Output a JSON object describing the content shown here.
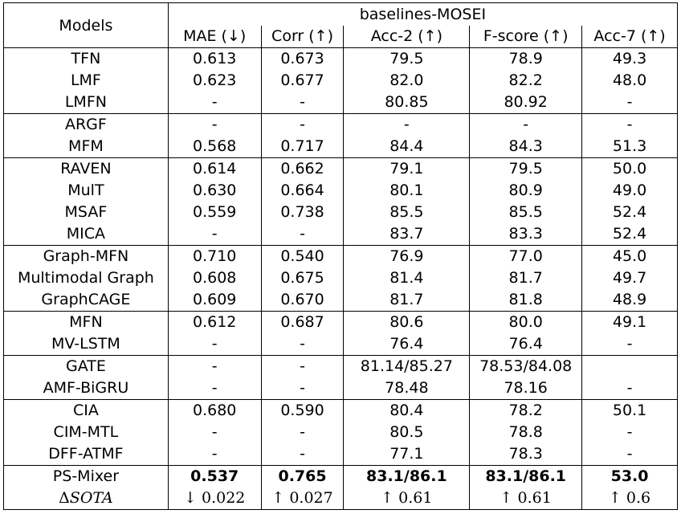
{
  "header": {
    "models_label": "Models",
    "group_label": "baselines-MOSEI",
    "columns": [
      "MAE (↓)",
      "Corr (↑)",
      "Acc-2 (↑)",
      "F-score (↑)",
      "Acc-7 (↑)"
    ]
  },
  "groups": [
    {
      "rows": [
        {
          "model": "TFN",
          "mae": "0.613",
          "corr": "0.673",
          "acc2": "79.5",
          "fscore": "78.9",
          "acc7": "49.3"
        },
        {
          "model": "LMF",
          "mae": "0.623",
          "corr": "0.677",
          "acc2": "82.0",
          "fscore": "82.2",
          "acc7": "48.0"
        },
        {
          "model": "LMFN",
          "mae": "-",
          "corr": "-",
          "acc2": "80.85",
          "fscore": "80.92",
          "acc7": "-"
        }
      ]
    },
    {
      "rows": [
        {
          "model": "ARGF",
          "mae": "-",
          "corr": "-",
          "acc2": "-",
          "fscore": "-",
          "acc7": "-"
        },
        {
          "model": "MFM",
          "mae": "0.568",
          "corr": "0.717",
          "acc2": "84.4",
          "fscore": "84.3",
          "acc7": "51.3"
        }
      ]
    },
    {
      "rows": [
        {
          "model": "RAVEN",
          "mae": "0.614",
          "corr": "0.662",
          "acc2": "79.1",
          "fscore": "79.5",
          "acc7": "50.0"
        },
        {
          "model": "MulT",
          "mae": "0.630",
          "corr": "0.664",
          "acc2": "80.1",
          "fscore": "80.9",
          "acc7": "49.0"
        },
        {
          "model": "MSAF",
          "mae": "0.559",
          "corr": "0.738",
          "acc2": "85.5",
          "fscore": "85.5",
          "acc7": "52.4"
        },
        {
          "model": "MICA",
          "mae": "-",
          "corr": "-",
          "acc2": "83.7",
          "fscore": "83.3",
          "acc7": "52.4"
        }
      ]
    },
    {
      "rows": [
        {
          "model": "Graph-MFN",
          "mae": "0.710",
          "corr": "0.540",
          "acc2": "76.9",
          "fscore": "77.0",
          "acc7": "45.0"
        },
        {
          "model": "Multimodal Graph",
          "mae": "0.608",
          "corr": "0.675",
          "acc2": "81.4",
          "fscore": "81.7",
          "acc7": "49.7"
        },
        {
          "model": "GraphCAGE",
          "mae": "0.609",
          "corr": "0.670",
          "acc2": "81.7",
          "fscore": "81.8",
          "acc7": "48.9"
        }
      ]
    },
    {
      "rows": [
        {
          "model": "MFN",
          "mae": "0.612",
          "corr": "0.687",
          "acc2": "80.6",
          "fscore": "80.0",
          "acc7": "49.1"
        },
        {
          "model": "MV-LSTM",
          "mae": "-",
          "corr": "-",
          "acc2": "76.4",
          "fscore": "76.4",
          "acc7": "-"
        }
      ]
    },
    {
      "rows": [
        {
          "model": "GATE",
          "mae": "-",
          "corr": "-",
          "acc2": "81.14/85.27",
          "fscore": "78.53/84.08",
          "acc7": ""
        },
        {
          "model": "AMF-BiGRU",
          "mae": "-",
          "corr": "-",
          "acc2": "78.48",
          "fscore": "78.16",
          "acc7": "-"
        }
      ]
    },
    {
      "rows": [
        {
          "model": "CIA",
          "mae": "0.680",
          "corr": "0.590",
          "acc2": "80.4",
          "fscore": "78.2",
          "acc7": "50.1"
        },
        {
          "model": "CIM-MTL",
          "mae": "-",
          "corr": "-",
          "acc2": "80.5",
          "fscore": "78.8",
          "acc7": "-"
        },
        {
          "model": "DFF-ATMF",
          "mae": "-",
          "corr": "-",
          "acc2": "77.1",
          "fscore": "78.3",
          "acc7": "-"
        }
      ]
    }
  ],
  "ours": {
    "model": "PS-Mixer",
    "mae": "0.537",
    "corr": "0.765",
    "acc2": "83.1/86.1",
    "fscore": "83.1/86.1",
    "acc7": "53.0"
  },
  "delta": {
    "symbol": "Δ",
    "label": "SOTA",
    "mae": "↓ 0.022",
    "corr": "↑ 0.027",
    "acc2": "↑ 0.61",
    "fscore": "↑ 0.61",
    "acc7": "↑ 0.6"
  }
}
